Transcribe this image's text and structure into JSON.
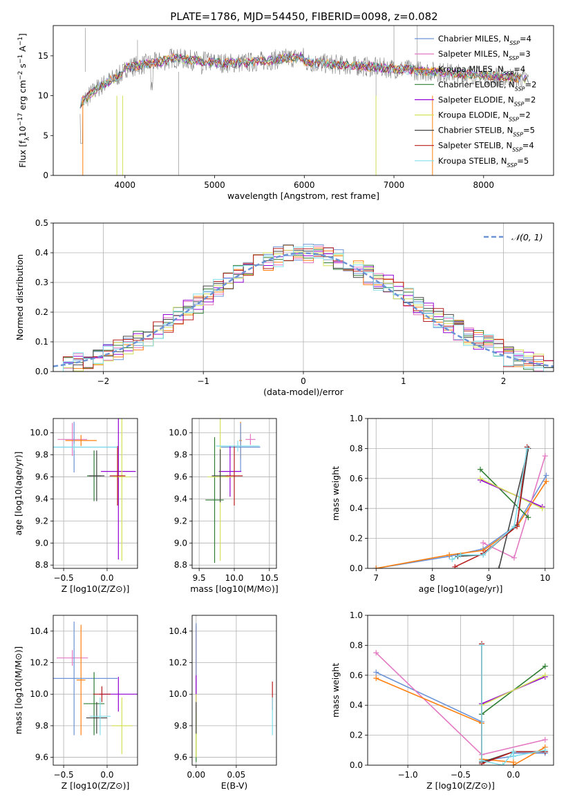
{
  "figure_title": "PLATE=1786, MJD=54450, FIBERID=0098, z=0.082",
  "models": [
    {
      "name": "Chabrier MILES",
      "nssp": "4",
      "color": "#6b93d6"
    },
    {
      "name": "Salpeter MILES",
      "nssp": "3",
      "color": "#e377c2"
    },
    {
      "name": "Kroupa MILES",
      "nssp": "4",
      "color": "#ff7f0e"
    },
    {
      "name": "Chabrier ELODIE",
      "nssp": "2",
      "color": "#2e7d32"
    },
    {
      "name": "Salpeter ELODIE",
      "nssp": "2",
      "color": "#9400d3"
    },
    {
      "name": "Kroupa ELODIE",
      "nssp": "2",
      "color": "#d4e157"
    },
    {
      "name": "Chabrier STELIB",
      "nssp": "5",
      "color": "#444444"
    },
    {
      "name": "Salpeter STELIB",
      "nssp": "4",
      "color": "#b71c1c"
    },
    {
      "name": "Kroupa STELIB",
      "nssp": "5",
      "color": "#80deea"
    }
  ],
  "chart_data": [
    {
      "id": "spectrum",
      "type": "line",
      "title": "PLATE=1786, MJD=54450, FIBERID=0098, z=0.082",
      "xlabel": "wavelength [Angstrom, rest frame]",
      "ylabel": "Flux [f_λ 10^-17 erg cm^-2 s^-1 A^-1]",
      "xlim": [
        3200,
        8780
      ],
      "ylim": [
        0,
        18.8
      ],
      "xticks": [
        4000,
        5000,
        6000,
        7000,
        8000
      ],
      "yticks": [
        0,
        5,
        10,
        15
      ],
      "grid": false,
      "legend": "right",
      "observed_color": "#808080",
      "x_range": [
        3500,
        8500
      ]
    },
    {
      "id": "residuals",
      "type": "bar",
      "xlabel": "(data-model)/error",
      "ylabel": "Normed distribution",
      "xlim": [
        -2.5,
        2.5
      ],
      "ylim": [
        0,
        0.5
      ],
      "xticks": [
        -2,
        -1,
        0,
        1,
        2
      ],
      "yticks": [
        0.0,
        0.1,
        0.2,
        0.3,
        0.4,
        0.5
      ],
      "grid": true,
      "legend": "top-right",
      "legend_label": "𝒩(0, 1)",
      "reference_color": "#6b93d6"
    },
    {
      "id": "age_vs_Z",
      "type": "scatter",
      "xlabel": "Z [log10(Z/Z⊙)]",
      "ylabel": "age  [log10(age/yr)]",
      "xlim": [
        -0.62,
        0.35
      ],
      "ylim": [
        8.77,
        10.13
      ],
      "xticks": [
        -0.5,
        0.0
      ],
      "yticks": [
        8.8,
        9.0,
        9.2,
        9.4,
        9.6,
        9.8,
        10.0
      ],
      "points": [
        {
          "x": -0.4,
          "y": 9.94,
          "xerr": 0.17,
          "yerr": 0.15
        },
        {
          "x": -0.3,
          "y": 9.93,
          "xerr": 0.18,
          "yerr": 0.05
        },
        {
          "x": -0.38,
          "y": 9.87,
          "xerr": 0.5,
          "yerr": 0.23
        },
        {
          "x": -0.15,
          "y": 9.61,
          "xerr": 0.08,
          "yerr": 0.23
        },
        {
          "x": 0.13,
          "y": 9.65,
          "xerr": 0.2,
          "yerr": 0.8
        },
        {
          "x": 0.17,
          "y": 9.6,
          "xerr": 0.1,
          "yerr": 0.76
        },
        {
          "x": -0.12,
          "y": 9.61,
          "xerr": 0.09,
          "yerr": 0.23
        },
        {
          "x": 0.12,
          "y": 9.61,
          "xerr": 0.09,
          "yerr": 0.27
        },
        {
          "x": -0.38,
          "y": 9.87,
          "xerr": 0.5,
          "yerr": 0.03
        }
      ],
      "point_colors": [
        "#e377c2",
        "#ff7f0e",
        "#6b93d6",
        "#2e7d32",
        "#9400d3",
        "#d4e157",
        "#444444",
        "#b71c1c",
        "#80deea"
      ]
    },
    {
      "id": "age_vs_mass",
      "type": "scatter",
      "xlabel": "mass [log10(M/M⊙)]",
      "ylabel": "",
      "xlim": [
        9.4,
        10.6
      ],
      "ylim": [
        8.77,
        10.13
      ],
      "xticks": [
        9.5,
        10.0,
        10.5
      ],
      "yticks": [
        8.8,
        9.0,
        9.2,
        9.4,
        9.6,
        9.8,
        10.0
      ],
      "points": [
        {
          "x": 10.23,
          "y": 9.94,
          "xerr": 0.07,
          "yerr": 0.05
        },
        {
          "x": 10.09,
          "y": 9.93,
          "xerr": 0.02,
          "yerr": 0.17
        },
        {
          "x": 10.09,
          "y": 9.87,
          "xerr": 0.28,
          "yerr": 0.22
        },
        {
          "x": 9.72,
          "y": 9.39,
          "xerr": 0.13,
          "yerr": 0.57
        },
        {
          "x": 9.94,
          "y": 9.65,
          "xerr": 0.16,
          "yerr": 0.23
        },
        {
          "x": 9.8,
          "y": 9.6,
          "xerr": 0.18,
          "yerr": 0.76
        },
        {
          "x": 9.8,
          "y": 9.61,
          "xerr": 0.12,
          "yerr": 0.24
        },
        {
          "x": 10.0,
          "y": 9.61,
          "xerr": 0.12,
          "yerr": 0.27
        },
        {
          "x": 10.05,
          "y": 9.88,
          "xerr": 0.31,
          "yerr": 0.05
        }
      ],
      "point_colors": [
        "#e377c2",
        "#ff7f0e",
        "#6b93d6",
        "#2e7d32",
        "#9400d3",
        "#d4e157",
        "#444444",
        "#b71c1c",
        "#80deea"
      ]
    },
    {
      "id": "weight_vs_age",
      "type": "line",
      "xlabel": "age  [log10(age/yr)]",
      "ylabel": "mass weight",
      "xlim": [
        6.85,
        10.15
      ],
      "ylim": [
        0,
        1.0
      ],
      "xticks": [
        7,
        8,
        9,
        10
      ],
      "yticks": [
        0.0,
        0.2,
        0.4,
        0.6,
        0.8,
        1.0
      ],
      "grid": true,
      "series": [
        {
          "x": [
            7.0,
            8.3,
            8.9,
            9.5,
            10.02
          ],
          "y": [
            0.0,
            0.08,
            0.13,
            0.29,
            0.62
          ]
        },
        {
          "x": [
            8.9,
            9.45,
            10.0
          ],
          "y": [
            0.17,
            0.07,
            0.75
          ]
        },
        {
          "x": [
            7.0,
            8.3,
            8.9,
            9.5,
            10.02
          ],
          "y": [
            0.0,
            0.09,
            0.12,
            0.28,
            0.58
          ]
        },
        {
          "x": [
            8.85,
            9.7
          ],
          "y": [
            0.66,
            0.34
          ]
        },
        {
          "x": [
            8.85,
            9.95
          ],
          "y": [
            0.59,
            0.41
          ]
        },
        {
          "x": [
            8.85,
            9.95
          ],
          "y": [
            0.6,
            0.4
          ]
        },
        {
          "x": [
            8.45,
            8.9,
            9.5,
            9.7,
            9.18
          ],
          "y": [
            0.08,
            0.09,
            0.29,
            0.8,
            0.0
          ]
        },
        {
          "x": [
            8.4,
            8.9,
            9.5,
            9.68
          ],
          "y": [
            0.01,
            0.1,
            0.28,
            0.81
          ]
        },
        {
          "x": [
            8.35,
            8.5,
            8.9,
            9.45,
            9.68
          ],
          "y": [
            0.06,
            0.09,
            0.09,
            0.28,
            0.8
          ]
        }
      ]
    },
    {
      "id": "mass_vs_Z",
      "type": "scatter",
      "xlabel": "Z [log10(Z/Z⊙)]",
      "ylabel": "mass [log10(M/M⊙)]",
      "xlim": [
        -0.62,
        0.35
      ],
      "ylim": [
        9.55,
        10.5
      ],
      "xticks": [
        -0.5,
        0.0
      ],
      "yticks": [
        9.6,
        9.8,
        10.0,
        10.2,
        10.4
      ],
      "points": [
        {
          "x": -0.4,
          "y": 10.23,
          "xerr": 0.18,
          "yerr": 0.05
        },
        {
          "x": -0.3,
          "y": 10.09,
          "xerr": 0.05,
          "yerr": 0.35
        },
        {
          "x": -0.38,
          "y": 10.1,
          "xerr": 0.5,
          "yerr": 0.36
        },
        {
          "x": -0.15,
          "y": 9.94,
          "xerr": 0.12,
          "yerr": 0.2
        },
        {
          "x": 0.13,
          "y": 10.0,
          "xerr": 0.22,
          "yerr": 0.11
        },
        {
          "x": 0.17,
          "y": 9.8,
          "xerr": 0.12,
          "yerr": 0.18
        },
        {
          "x": -0.12,
          "y": 9.85,
          "xerr": 0.12,
          "yerr": 0.1
        },
        {
          "x": -0.06,
          "y": 10.0,
          "xerr": 0.1,
          "yerr": 0.05
        },
        {
          "x": -0.08,
          "y": 9.86,
          "xerr": 0.12,
          "yerr": 0.12
        }
      ],
      "point_colors": [
        "#e377c2",
        "#ff7f0e",
        "#6b93d6",
        "#2e7d32",
        "#9400d3",
        "#d4e157",
        "#444444",
        "#b71c1c",
        "#80deea"
      ]
    },
    {
      "id": "mass_vs_EBV",
      "type": "scatter",
      "xlabel": "E(B-V)",
      "ylabel": "",
      "xlim": [
        -0.005,
        0.1
      ],
      "ylim": [
        9.55,
        10.5
      ],
      "xticks": [
        0.0,
        0.05
      ],
      "yticks": [
        9.6,
        9.8,
        10.0,
        10.2,
        10.4
      ],
      "points": [
        {
          "x": 0.0,
          "y": 10.23,
          "xerr": 0.0,
          "yerr": 0.2
        },
        {
          "x": 0.0,
          "y": 10.09,
          "xerr": 0.0,
          "yerr": 0.35
        },
        {
          "x": 0.0,
          "y": 10.1,
          "xerr": 0.0,
          "yerr": 0.35
        },
        {
          "x": 0.0,
          "y": 9.73,
          "xerr": 0.0,
          "yerr": 0.16
        },
        {
          "x": 0.0,
          "y": 10.0,
          "xerr": 0.0,
          "yerr": 0.12
        },
        {
          "x": 0.0,
          "y": 9.8,
          "xerr": 0.0,
          "yerr": 0.2
        },
        {
          "x": 0.0,
          "y": 9.85,
          "xerr": 0.0,
          "yerr": 0.1
        },
        {
          "x": 0.095,
          "y": 9.99,
          "xerr": 0.0,
          "yerr": 0.09
        },
        {
          "x": 0.095,
          "y": 9.86,
          "xerr": 0.0,
          "yerr": 0.12
        }
      ],
      "point_colors": [
        "#e377c2",
        "#ff7f0e",
        "#6b93d6",
        "#2e7d32",
        "#9400d3",
        "#d4e157",
        "#444444",
        "#b71c1c",
        "#80deea"
      ]
    },
    {
      "id": "weight_vs_Z",
      "type": "line",
      "xlabel": "Z [log10(Z/Z⊙)]",
      "ylabel": "mass weight",
      "xlim": [
        -1.38,
        0.38
      ],
      "ylim": [
        0,
        1.0
      ],
      "xticks": [
        -1.0,
        -0.5,
        0.0
      ],
      "yticks": [
        0.0,
        0.2,
        0.4,
        0.6,
        0.8,
        1.0
      ],
      "grid": true,
      "series": [
        {
          "x": [
            -1.3,
            -0.3,
            -0.3,
            0.0,
            0.0,
            0.3
          ],
          "y": [
            0.62,
            0.29,
            0.03,
            0.06,
            0.08,
            0.08
          ]
        },
        {
          "x": [
            -1.3,
            -0.3,
            0.3
          ],
          "y": [
            0.75,
            0.07,
            0.17
          ]
        },
        {
          "x": [
            -1.3,
            -0.3,
            -0.3,
            0.0,
            0.0,
            0.3
          ],
          "y": [
            0.58,
            0.28,
            0.04,
            0.02,
            0.0,
            0.12
          ]
        },
        {
          "x": [
            -0.3,
            0.3
          ],
          "y": [
            0.34,
            0.66
          ]
        },
        {
          "x": [
            -0.3,
            0.3
          ],
          "y": [
            0.41,
            0.59
          ]
        },
        {
          "x": [
            -0.3,
            0.3
          ],
          "y": [
            0.4,
            0.6
          ]
        },
        {
          "x": [
            -0.3,
            -0.3,
            0.0,
            0.3
          ],
          "y": [
            0.8,
            0.02,
            0.09,
            0.09
          ]
        },
        {
          "x": [
            -0.3,
            -0.3,
            0.0,
            0.3
          ],
          "y": [
            0.81,
            0.01,
            0.09,
            0.09
          ]
        },
        {
          "x": [
            -0.3,
            -0.3,
            -0.1,
            0.0,
            0.0,
            0.3
          ],
          "y": [
            0.8,
            0.03,
            0.0,
            0.09,
            0.06,
            0.1
          ]
        }
      ]
    }
  ]
}
